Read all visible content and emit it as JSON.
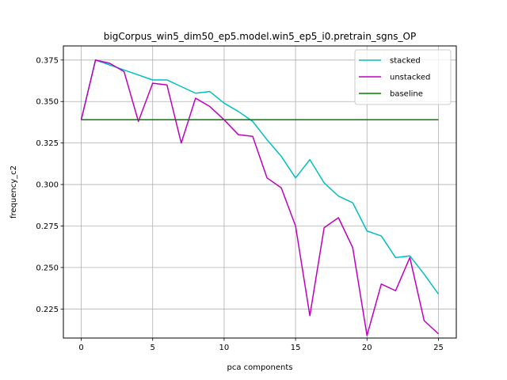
{
  "chart_data": {
    "type": "line",
    "title": "bigCorpus_win5_dim50_ep5.model.win5_ep5_i0.pretrain_sgns_OP",
    "xlabel": "pca components",
    "ylabel": "frequency_c2",
    "xlim": [
      -1.25,
      26.25
    ],
    "ylim": [
      0.2075,
      0.3835
    ],
    "xticks": [
      0,
      5,
      10,
      15,
      20,
      25
    ],
    "xtick_labels": [
      "0",
      "5",
      "10",
      "15",
      "20",
      "25"
    ],
    "yticks": [
      0.225,
      0.25,
      0.275,
      0.3,
      0.325,
      0.35,
      0.375
    ],
    "ytick_labels": [
      "0.225",
      "0.250",
      "0.275",
      "0.300",
      "0.325",
      "0.350",
      "0.375"
    ],
    "grid": true,
    "legend_position": "top-right",
    "x": [
      0,
      1,
      2,
      3,
      4,
      5,
      6,
      7,
      8,
      9,
      10,
      11,
      12,
      13,
      14,
      15,
      16,
      17,
      18,
      19,
      20,
      21,
      22,
      23,
      24,
      25
    ],
    "series": [
      {
        "name": "stacked",
        "color": "#00bfbf",
        "values": [
          0.339,
          0.375,
          0.372,
          0.369,
          0.366,
          0.363,
          0.363,
          0.359,
          0.355,
          0.356,
          0.349,
          0.344,
          0.338,
          0.327,
          0.317,
          0.304,
          0.315,
          0.301,
          0.293,
          0.289,
          0.272,
          0.269,
          0.256,
          0.257,
          0.246,
          0.234
        ]
      },
      {
        "name": "unstacked",
        "color": "#bf00bf",
        "values": [
          0.339,
          0.375,
          0.373,
          0.368,
          0.338,
          0.361,
          0.36,
          0.325,
          0.352,
          0.347,
          0.339,
          0.33,
          0.329,
          0.304,
          0.298,
          0.275,
          0.221,
          0.274,
          0.28,
          0.262,
          0.209,
          0.24,
          0.236,
          0.256,
          0.218,
          0.21
        ]
      },
      {
        "name": "baseline",
        "color": "#008000",
        "values": [
          0.339,
          0.339,
          0.339,
          0.339,
          0.339,
          0.339,
          0.339,
          0.339,
          0.339,
          0.339,
          0.339,
          0.339,
          0.339,
          0.339,
          0.339,
          0.339,
          0.339,
          0.339,
          0.339,
          0.339,
          0.339,
          0.339,
          0.339,
          0.339,
          0.339,
          0.339
        ]
      }
    ]
  }
}
